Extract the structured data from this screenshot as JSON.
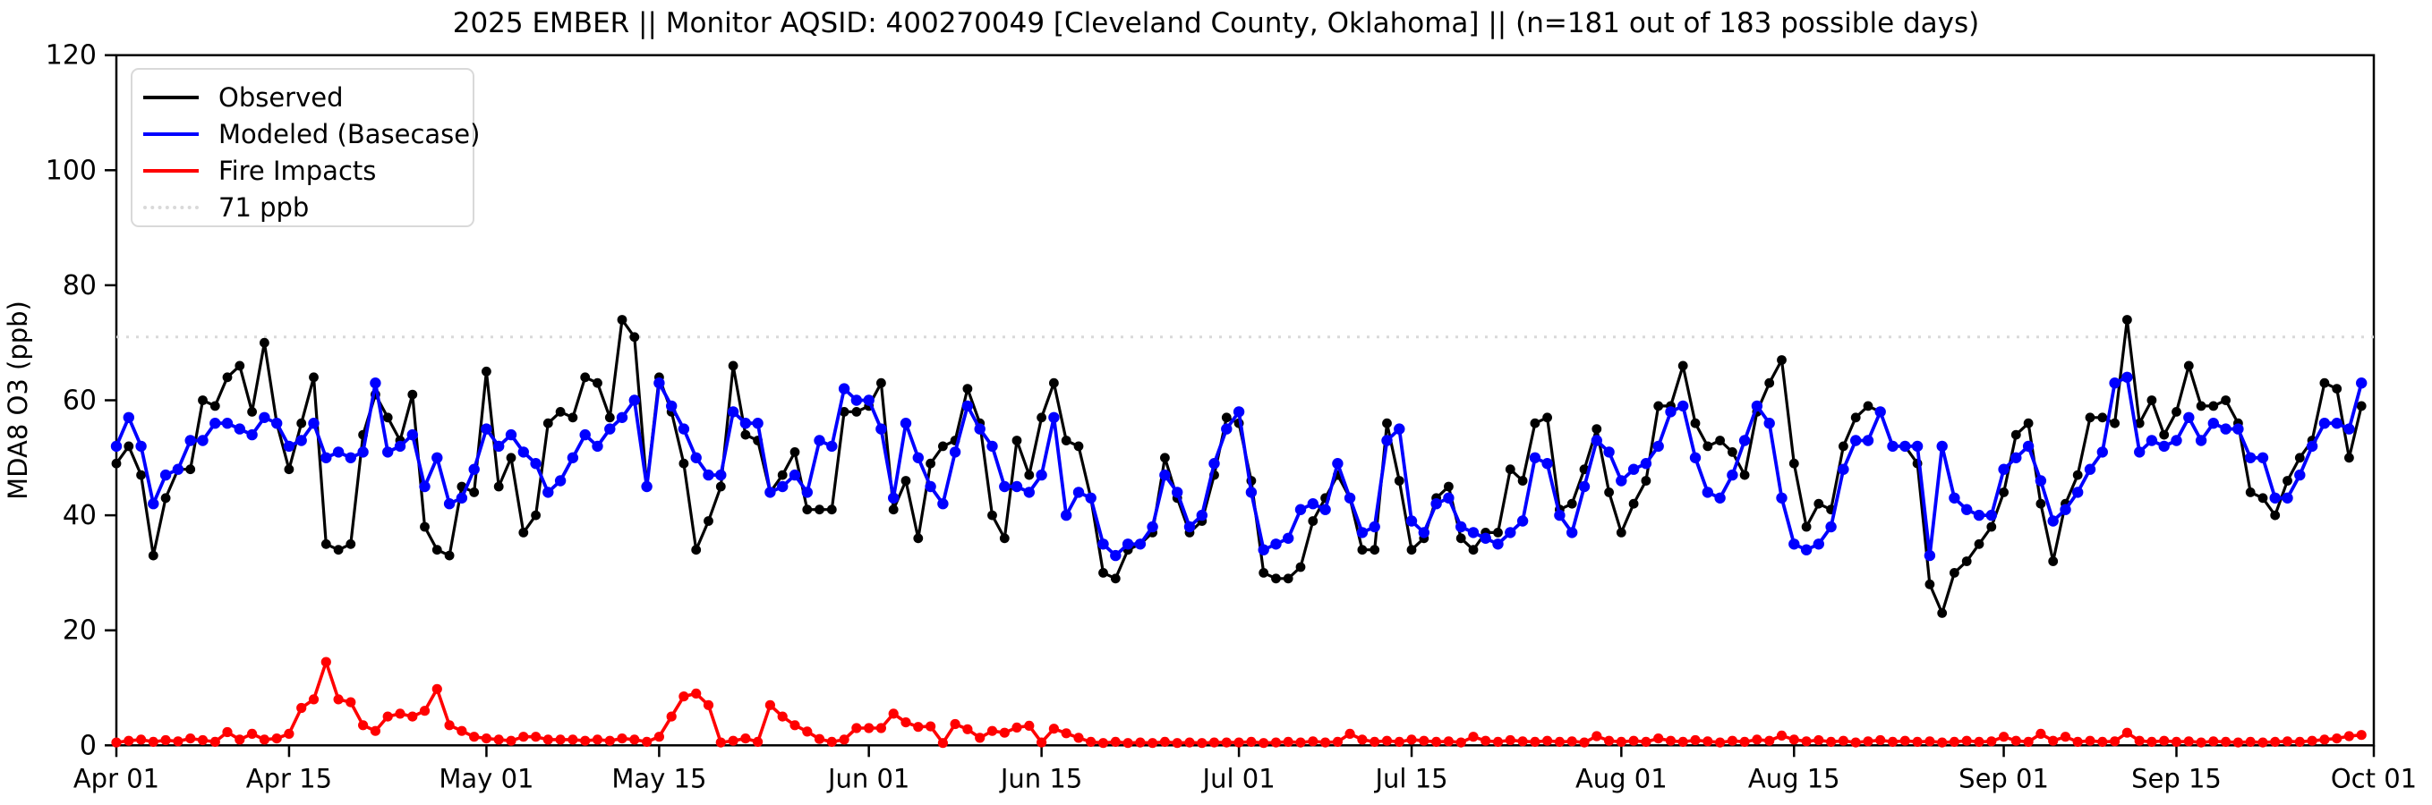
{
  "title": "2025 EMBER || Monitor AQSID: 400270049 [Cleveland County, Oklahoma] || (n=181 out of 183 possible days)",
  "colors": {
    "observed": "#000000",
    "modeled": "#0000ff",
    "fire": "#ff0000",
    "threshold": "#d9d9d9",
    "axis": "#000000",
    "background": "#ffffff"
  },
  "legend": [
    {
      "label": "Observed",
      "color": "#000000",
      "style": "solid"
    },
    {
      "label": "Modeled (Basecase)",
      "color": "#0000ff",
      "style": "solid"
    },
    {
      "label": "Fire Impacts",
      "color": "#ff0000",
      "style": "solid"
    },
    {
      "label": "71 ppb",
      "color": "#d9d9d9",
      "style": "dotted"
    }
  ],
  "chart_data": {
    "type": "line",
    "title": "2025 EMBER || Monitor AQSID: 400270049 [Cleveland County, Oklahoma] || (n=181 out of 183 possible days)",
    "xlabel": "",
    "ylabel": "MDA8 O3 (ppb)",
    "ylim": [
      0,
      120
    ],
    "y_ticks": [
      0,
      20,
      40,
      60,
      80,
      100,
      120
    ],
    "x_start": "Apr 01",
    "x_end": "Oct 01",
    "n_days": 183,
    "x_tick_days": [
      0,
      14,
      30,
      44,
      61,
      75,
      91,
      105,
      122,
      136,
      153,
      167,
      183
    ],
    "x_tick_labels": [
      "Apr 01",
      "Apr 15",
      "May 01",
      "May 15",
      "Jun 01",
      "Jun 15",
      "Jul 01",
      "Jul 15",
      "Aug 01",
      "Aug 15",
      "Sep 01",
      "Sep 15",
      "Oct 01"
    ],
    "threshold_ppb": 71,
    "legend_position": "upper left",
    "grid": false,
    "series": [
      {
        "name": "Observed",
        "color": "#000000",
        "marker": "circle",
        "values": [
          49,
          52,
          47,
          33,
          43,
          48,
          48,
          60,
          59,
          64,
          66,
          58,
          70,
          56,
          48,
          56,
          64,
          35,
          34,
          35,
          54,
          61,
          57,
          53,
          61,
          38,
          34,
          33,
          45,
          44,
          65,
          45,
          50,
          37,
          40,
          56,
          58,
          57,
          64,
          63,
          57,
          74,
          71,
          45,
          64,
          58,
          49,
          34,
          39,
          45,
          66,
          54,
          53,
          44,
          47,
          51,
          41,
          41,
          41,
          58,
          58,
          59,
          63,
          41,
          46,
          36,
          49,
          52,
          53,
          62,
          56,
          40,
          36,
          53,
          47,
          57,
          63,
          53,
          52,
          43,
          30,
          29,
          34,
          35,
          37,
          50,
          43,
          37,
          39,
          47,
          57,
          56,
          46,
          30,
          29,
          29,
          31,
          39,
          43,
          47,
          43,
          34,
          34,
          56,
          46,
          34,
          36,
          43,
          45,
          36,
          34,
          37,
          37,
          48,
          46,
          56,
          57,
          41,
          42,
          48,
          55,
          44,
          37,
          42,
          46,
          59,
          59,
          66,
          56,
          52,
          53,
          51,
          47,
          58,
          63,
          67,
          49,
          38,
          42,
          41,
          52,
          57,
          59,
          58,
          52,
          52,
          49,
          28,
          23,
          30,
          32,
          35,
          38,
          44,
          54,
          56,
          42,
          32,
          42,
          47,
          57,
          57,
          56,
          74,
          56,
          60,
          54,
          58,
          66,
          59,
          59,
          60,
          56,
          44,
          43,
          40,
          46,
          50,
          53,
          63,
          62,
          50,
          59
        ]
      },
      {
        "name": "Modeled (Basecase)",
        "color": "#0000ff",
        "marker": "circle",
        "values": [
          52,
          57,
          52,
          42,
          47,
          48,
          53,
          53,
          56,
          56,
          55,
          54,
          57,
          56,
          52,
          53,
          56,
          50,
          51,
          50,
          51,
          63,
          51,
          52,
          54,
          45,
          50,
          42,
          43,
          48,
          55,
          52,
          54,
          51,
          49,
          44,
          46,
          50,
          54,
          52,
          55,
          57,
          60,
          45,
          63,
          59,
          55,
          50,
          47,
          47,
          58,
          56,
          56,
          44,
          45,
          47,
          44,
          53,
          52,
          62,
          60,
          60,
          55,
          43,
          56,
          50,
          45,
          42,
          51,
          59,
          55,
          52,
          45,
          45,
          44,
          47,
          57,
          40,
          44,
          43,
          35,
          33,
          35,
          35,
          38,
          47,
          44,
          38,
          40,
          49,
          55,
          58,
          44,
          34,
          35,
          36,
          41,
          42,
          41,
          49,
          43,
          37,
          38,
          53,
          55,
          39,
          37,
          42,
          43,
          38,
          37,
          36,
          35,
          37,
          39,
          50,
          49,
          40,
          37,
          45,
          53,
          51,
          46,
          48,
          49,
          52,
          58,
          59,
          50,
          44,
          43,
          47,
          53,
          59,
          56,
          43,
          35,
          34,
          35,
          38,
          48,
          53,
          53,
          58,
          52,
          52,
          52,
          33,
          52,
          43,
          41,
          40,
          40,
          48,
          50,
          52,
          46,
          39,
          41,
          44,
          48,
          51,
          63,
          64,
          51,
          53,
          52,
          53,
          57,
          53,
          56,
          55,
          55,
          50,
          50,
          43,
          43,
          47,
          52,
          56,
          56,
          55,
          63
        ]
      },
      {
        "name": "Fire Impacts",
        "color": "#ff0000",
        "marker": "circle",
        "values": [
          0.5,
          0.8,
          1.0,
          0.6,
          0.9,
          0.7,
          1.2,
          0.9,
          0.6,
          2.3,
          1.0,
          2.0,
          1.0,
          1.2,
          2.0,
          6.5,
          8.0,
          14.5,
          8.0,
          7.5,
          3.5,
          2.5,
          5.0,
          5.5,
          5.0,
          6.0,
          9.8,
          3.5,
          2.5,
          1.5,
          1.2,
          1.0,
          0.8,
          1.5,
          1.5,
          1.0,
          1.0,
          1.0,
          0.8,
          1.0,
          0.8,
          1.2,
          1.0,
          0.6,
          1.5,
          5.0,
          8.5,
          9.0,
          7.0,
          0.5,
          0.8,
          1.2,
          0.6,
          7.0,
          5.0,
          3.5,
          2.4,
          1.1,
          0.6,
          1.0,
          3.0,
          3.0,
          3.0,
          5.5,
          4.0,
          3.2,
          3.3,
          0.4,
          3.7,
          2.8,
          1.3,
          2.5,
          2.2,
          3.1,
          3.4,
          0.5,
          2.9,
          2.1,
          1.3,
          0.6,
          0.4,
          0.6,
          0.4,
          0.5,
          0.4,
          0.6,
          0.4,
          0.5,
          0.4,
          0.5,
          0.5,
          0.5,
          0.6,
          0.4,
          0.5,
          0.6,
          0.5,
          0.7,
          0.5,
          0.6,
          2.0,
          1.0,
          0.6,
          0.8,
          0.6,
          1.0,
          0.8,
          0.6,
          0.7,
          0.5,
          1.5,
          0.8,
          0.6,
          0.9,
          0.7,
          0.6,
          0.8,
          0.6,
          0.7,
          0.5,
          1.6,
          0.8,
          0.6,
          0.8,
          0.6,
          1.2,
          0.8,
          0.6,
          0.9,
          0.7,
          0.5,
          0.8,
          0.6,
          1.0,
          0.8,
          1.7,
          1.0,
          0.7,
          0.9,
          0.6,
          0.8,
          0.5,
          0.7,
          0.9,
          0.6,
          0.8,
          0.6,
          0.7,
          0.5,
          0.6,
          0.8,
          0.6,
          0.7,
          1.5,
          0.8,
          0.6,
          2.0,
          0.8,
          1.5,
          0.6,
          0.8,
          0.6,
          0.7,
          2.2,
          0.8,
          0.6,
          0.8,
          0.6,
          0.7,
          0.5,
          0.7,
          0.6,
          0.5,
          0.6,
          0.5,
          0.6,
          0.7,
          0.6,
          0.8,
          1.0,
          1.2,
          1.6,
          1.8
        ]
      }
    ]
  }
}
